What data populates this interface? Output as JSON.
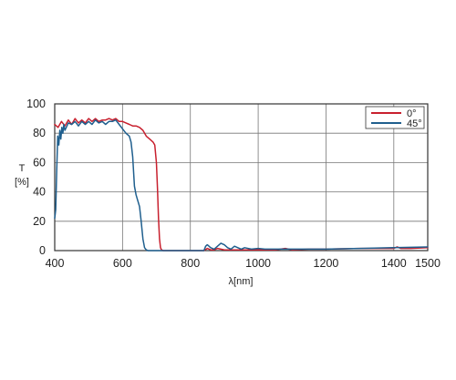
{
  "chart_data": {
    "type": "line",
    "title": "",
    "xlabel": "λ[nm]",
    "ylabel_lines": [
      "T",
      "[%]"
    ],
    "xlim": [
      400,
      1500
    ],
    "ylim": [
      0,
      100
    ],
    "x_ticks": [
      400,
      600,
      800,
      1000,
      1200,
      1400,
      1500
    ],
    "x_gridlines": [
      400,
      600,
      800,
      1000,
      1200,
      1400,
      1500
    ],
    "y_ticks": [
      0,
      20,
      40,
      60,
      80,
      100
    ],
    "grid": true,
    "legend_position": "top-right",
    "series": [
      {
        "name": "0°",
        "color": "#c8202e",
        "x": [
          400,
          410,
          420,
          430,
          440,
          450,
          460,
          470,
          480,
          490,
          500,
          510,
          520,
          530,
          540,
          550,
          560,
          570,
          580,
          590,
          600,
          610,
          620,
          630,
          640,
          650,
          660,
          670,
          680,
          690,
          695,
          700,
          703,
          706,
          709,
          712,
          715,
          720,
          740,
          800,
          840,
          850,
          860,
          870,
          880,
          890,
          900,
          950,
          1000,
          1050,
          1080,
          1100,
          1150,
          1200,
          1300,
          1400,
          1410,
          1420,
          1450,
          1500
        ],
        "y": [
          86,
          84,
          88,
          85,
          89,
          86,
          90,
          87,
          89,
          87,
          90,
          88,
          90,
          88,
          89,
          89,
          90,
          89,
          90,
          88,
          88,
          87,
          86,
          85,
          85,
          84,
          82,
          78,
          76,
          74,
          72,
          60,
          42,
          22,
          8,
          2,
          0.5,
          0,
          0,
          0,
          0,
          1.5,
          0.5,
          0.5,
          1.5,
          1,
          0.5,
          0.5,
          0.5,
          0.5,
          1.5,
          0.5,
          1,
          1,
          1.5,
          1.5,
          2.5,
          1.5,
          1.5,
          2
        ]
      },
      {
        "name": "45°",
        "color": "#1f5f8e",
        "x": [
          400,
          403,
          406,
          409,
          412,
          415,
          418,
          421,
          424,
          427,
          430,
          440,
          450,
          460,
          470,
          480,
          490,
          500,
          510,
          520,
          530,
          540,
          550,
          560,
          570,
          580,
          590,
          600,
          610,
          620,
          625,
          630,
          635,
          640,
          645,
          650,
          655,
          660,
          665,
          670,
          675,
          680,
          700,
          800,
          840,
          845,
          850,
          860,
          870,
          880,
          890,
          900,
          910,
          920,
          930,
          940,
          950,
          960,
          980,
          1000,
          1020,
          1050,
          1100,
          1200,
          1300,
          1400,
          1500
        ],
        "y": [
          22,
          28,
          55,
          78,
          72,
          82,
          76,
          84,
          80,
          86,
          82,
          87,
          86,
          88,
          85,
          88,
          86,
          88,
          86,
          89,
          87,
          88,
          86,
          88,
          88,
          89,
          86,
          83,
          80,
          78,
          74,
          64,
          44,
          38,
          34,
          30,
          20,
          8,
          2,
          0.5,
          0,
          0,
          0,
          0,
          0,
          3,
          4,
          2,
          1,
          3,
          5,
          4,
          2,
          1,
          3,
          2,
          1,
          2,
          1,
          1.5,
          1,
          1,
          1,
          1,
          1.5,
          2,
          2.5
        ]
      }
    ]
  }
}
